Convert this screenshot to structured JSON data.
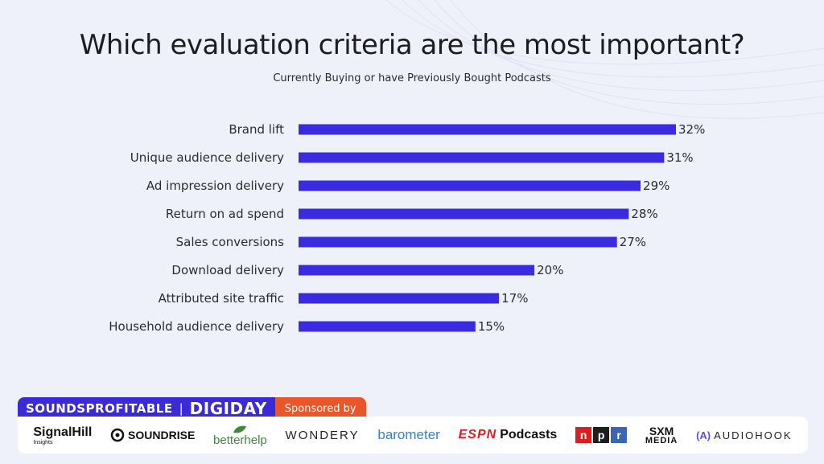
{
  "chart_data": {
    "type": "bar",
    "orientation": "horizontal",
    "title": "Which evaluation criteria are the most important?",
    "subtitle": "Currently Buying or have Previously Bought Podcasts",
    "categories": [
      "Brand lift",
      "Unique audience delivery",
      "Ad impression delivery",
      "Return on ad spend",
      "Sales conversions",
      "Download delivery",
      "Attributed site traffic",
      "Household audience delivery"
    ],
    "values": [
      32,
      31,
      29,
      28,
      27,
      20,
      17,
      15
    ],
    "value_labels": [
      "32%",
      "31%",
      "29%",
      "28%",
      "27%",
      "20%",
      "17%",
      "15%"
    ],
    "xlim": [
      0,
      32
    ],
    "bar_color": "#3a2be0",
    "grid": false,
    "legend": "none"
  },
  "footer": {
    "brand": "SOUNDSPROFITABLE",
    "separator": "|",
    "partner": "DIGIDAY",
    "sponsored_label": "Sponsored by",
    "brand_color": "#3b2bd6",
    "sponsored_color": "#e8562a",
    "sponsors": {
      "signalhill": "SignalHill",
      "signalhill_sub": "Insights",
      "soundrise": "SOUNDRISE",
      "betterhelp": "betterhelp",
      "wondery": "WONDERY",
      "barometer": "barometer",
      "espn_mark": "ESPN",
      "espn_text": "Podcasts",
      "npr": [
        "n",
        "p",
        "r"
      ],
      "npr_colors": [
        "#d62021",
        "#1d1d1b",
        "#3c66b0"
      ],
      "sxm": "SXM",
      "sxm_sub": "MEDIA",
      "audiohook_icon": "(A)",
      "audiohook": "AUDIOHOOK"
    }
  }
}
